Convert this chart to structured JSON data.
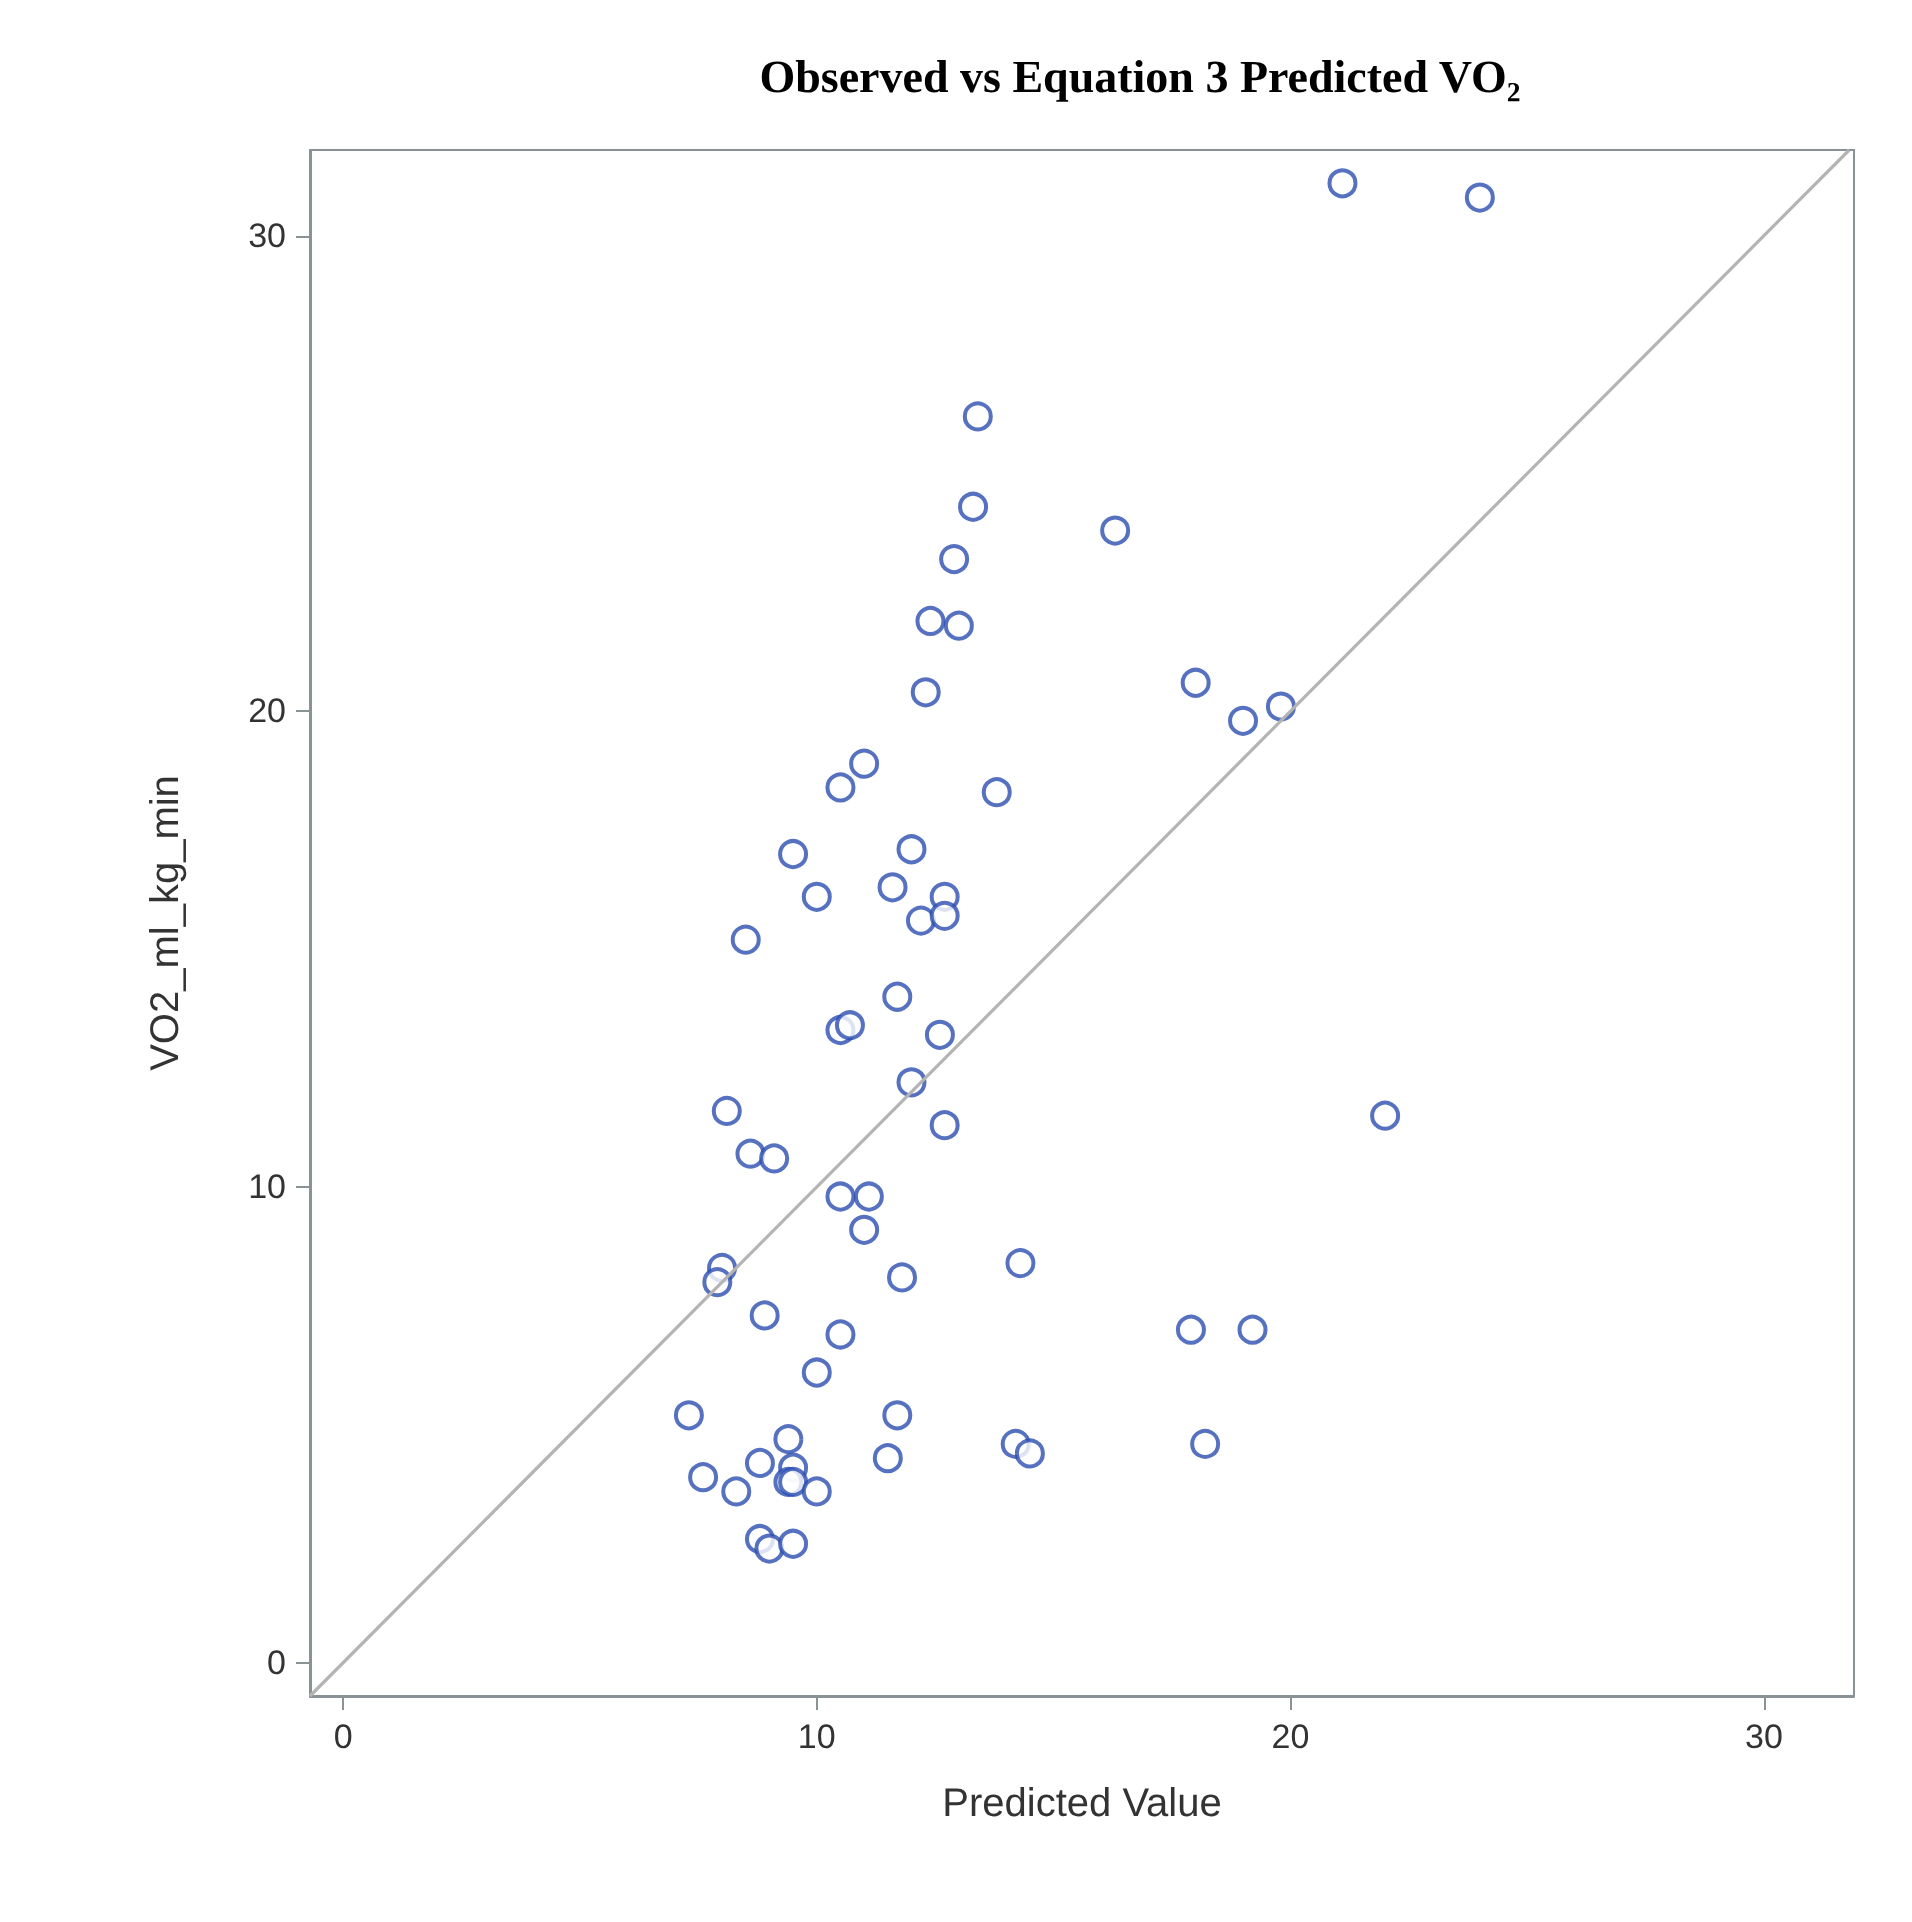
{
  "chart_data": {
    "type": "scatter",
    "title": "Observed vs Equation 3 Predicted VO₂",
    "xlabel": "Predicted Value",
    "ylabel": "VO2_ml_kg_min",
    "xlim": [
      -0.7,
      31.9
    ],
    "ylim": [
      -0.7,
      31.8
    ],
    "xticks": [
      0,
      10,
      20,
      30
    ],
    "yticks": [
      0,
      10,
      20,
      30
    ],
    "grid": false,
    "marker": "circle",
    "series": [
      {
        "type": "scatter",
        "color": "#2a4db0",
        "x": [
          21.1,
          24.0,
          13.4,
          13.3,
          16.3,
          12.9,
          12.4,
          13.0,
          12.3,
          18.0,
          19.0,
          19.8,
          11.0,
          10.5,
          13.8,
          9.5,
          12.0,
          11.6,
          10.0,
          12.7,
          12.2,
          12.7,
          8.5,
          11.7,
          10.5,
          10.7,
          12.6,
          12.0,
          8.1,
          22.0,
          12.7,
          8.6,
          9.1,
          10.5,
          11.1,
          11.0,
          8.0,
          7.9,
          14.3,
          11.8,
          8.9,
          10.5,
          17.9,
          19.2,
          10.0,
          7.3,
          11.7,
          9.4,
          14.2,
          14.5,
          18.2,
          11.5,
          8.8,
          7.6,
          9.5,
          9.4,
          9.5,
          8.3,
          10.0,
          8.8,
          9.0,
          9.5
        ],
        "values": [
          31.1,
          30.8,
          26.2,
          24.3,
          23.8,
          23.2,
          21.9,
          21.8,
          20.4,
          20.6,
          19.8,
          20.1,
          18.9,
          18.4,
          18.3,
          17.0,
          17.1,
          16.3,
          16.1,
          16.1,
          15.6,
          15.7,
          15.2,
          14.0,
          13.3,
          13.4,
          13.2,
          12.2,
          11.6,
          11.5,
          11.3,
          10.7,
          10.6,
          9.8,
          9.8,
          9.1,
          8.3,
          8.0,
          8.4,
          8.1,
          7.3,
          6.9,
          7.0,
          7.0,
          6.1,
          5.2,
          5.2,
          4.7,
          4.6,
          4.4,
          4.6,
          4.3,
          4.2,
          3.9,
          4.1,
          3.8,
          3.8,
          3.6,
          3.6,
          2.6,
          2.4,
          2.5
        ]
      },
      {
        "type": "line",
        "color": "#b4b4b4",
        "marker": "none",
        "x": [
          -0.7,
          31.8
        ],
        "values": [
          -0.7,
          31.8
        ]
      }
    ]
  }
}
